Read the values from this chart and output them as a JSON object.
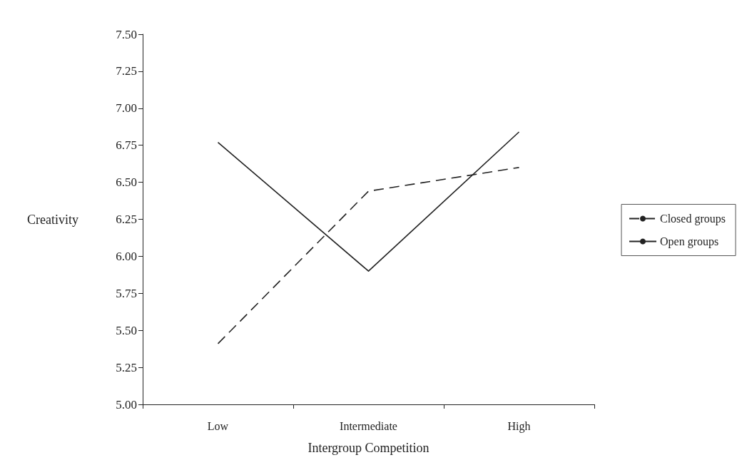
{
  "chart_data": {
    "type": "line",
    "xlabel": "Intergroup Competition",
    "ylabel": "Creativity",
    "categories": [
      "Low",
      "Intermediate",
      "High"
    ],
    "series": [
      {
        "name": "Closed groups",
        "color": "#222222",
        "line_style": "dashed",
        "values": [
          5.41,
          6.44,
          6.6
        ]
      },
      {
        "name": "Open groups",
        "color": "#222222",
        "line_style": "solid",
        "values": [
          6.77,
          5.9,
          6.84
        ]
      }
    ],
    "ylim": [
      5,
      7.5
    ],
    "yticks": [
      {
        "value": 5,
        "label": "5.00"
      },
      {
        "value": 5.25,
        "label": "5.25"
      },
      {
        "value": 5.5,
        "label": "5.50"
      },
      {
        "value": 5.75,
        "label": "5.75"
      },
      {
        "value": 6,
        "label": "6.00"
      },
      {
        "value": 6.25,
        "label": "6.25"
      },
      {
        "value": 6.5,
        "label": "6.50"
      },
      {
        "value": 6.75,
        "label": "6.75"
      },
      {
        "value": 7,
        "label": "7.00"
      },
      {
        "value": 7.25,
        "label": "7.25"
      },
      {
        "value": 7.5,
        "label": "7.50"
      }
    ],
    "grid": false,
    "legend": "right",
    "marker": "none"
  }
}
